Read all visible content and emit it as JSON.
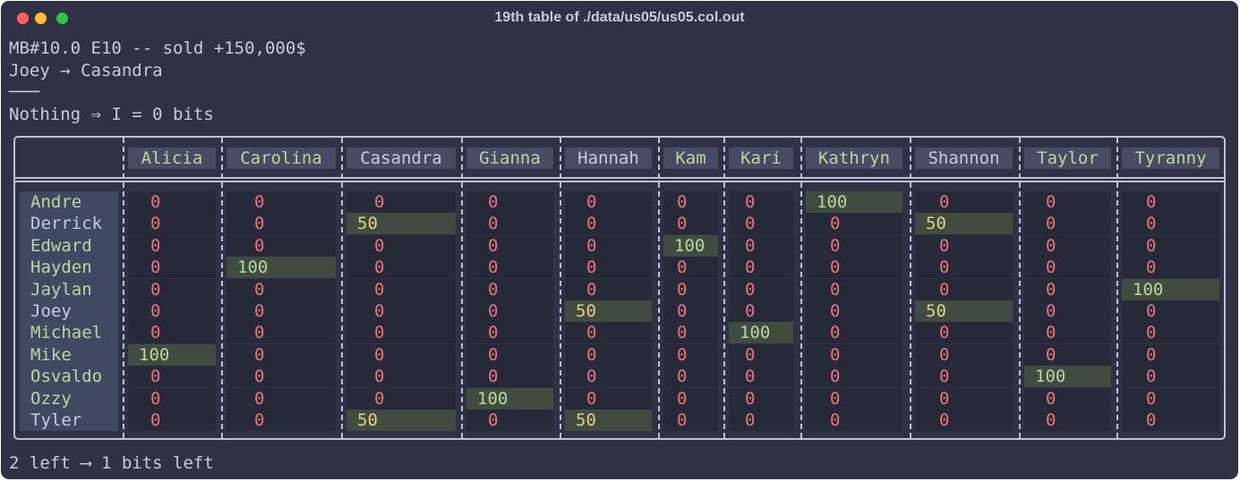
{
  "window": {
    "title": "19th table of ./data/us05/us05.col.out"
  },
  "header_lines": [
    "MB#10.0 E10 -- sold +150,000$",
    "Joey → Casandra",
    "───",
    "Nothing ⇒ I = 0 bits"
  ],
  "footer": "2 left ⟶ 1 bits left",
  "colors": {
    "background": "#2e3244",
    "positive_text": "#b9d99a",
    "zero_text": "#ea7479",
    "hit_bg": "#3f4c3f",
    "header_bg": "#474b63"
  },
  "table": {
    "columns": [
      "Alicia",
      "Carolina",
      "Casandra",
      "Gianna",
      "Hannah",
      "Kam",
      "Kari",
      "Kathryn",
      "Shannon",
      "Taylor",
      "Tyranny"
    ],
    "rows": [
      {
        "name": "Andre",
        "values": [
          "0",
          "0",
          "0",
          "0",
          "0",
          "0",
          "0",
          "100",
          "0",
          "0",
          "0"
        ]
      },
      {
        "name": "Derrick",
        "values": [
          "0",
          "0",
          "50",
          "0",
          "0",
          "0",
          "0",
          "0",
          "50",
          "0",
          "0"
        ]
      },
      {
        "name": "Edward",
        "values": [
          "0",
          "0",
          "0",
          "0",
          "0",
          "100",
          "0",
          "0",
          "0",
          "0",
          "0"
        ]
      },
      {
        "name": "Hayden",
        "values": [
          "0",
          "100",
          "0",
          "0",
          "0",
          "0",
          "0",
          "0",
          "0",
          "0",
          "0"
        ]
      },
      {
        "name": "Jaylan",
        "values": [
          "0",
          "0",
          "0",
          "0",
          "0",
          "0",
          "0",
          "0",
          "0",
          "0",
          "100"
        ]
      },
      {
        "name": "Joey",
        "values": [
          "0",
          "0",
          "0",
          "0",
          "50",
          "0",
          "0",
          "0",
          "50",
          "0",
          "0"
        ]
      },
      {
        "name": "Michael",
        "values": [
          "0",
          "0",
          "0",
          "0",
          "0",
          "0",
          "100",
          "0",
          "0",
          "0",
          "0"
        ]
      },
      {
        "name": "Mike",
        "values": [
          "100",
          "0",
          "0",
          "0",
          "0",
          "0",
          "0",
          "0",
          "0",
          "0",
          "0"
        ]
      },
      {
        "name": "Osvaldo",
        "values": [
          "0",
          "0",
          "0",
          "0",
          "0",
          "0",
          "0",
          "0",
          "0",
          "100",
          "0"
        ]
      },
      {
        "name": "Ozzy",
        "values": [
          "0",
          "0",
          "0",
          "100",
          "0",
          "0",
          "0",
          "0",
          "0",
          "0",
          "0"
        ]
      },
      {
        "name": "Tyler",
        "values": [
          "0",
          "0",
          "50",
          "0",
          "50",
          "0",
          "0",
          "0",
          "0",
          "0",
          "0"
        ]
      }
    ]
  }
}
